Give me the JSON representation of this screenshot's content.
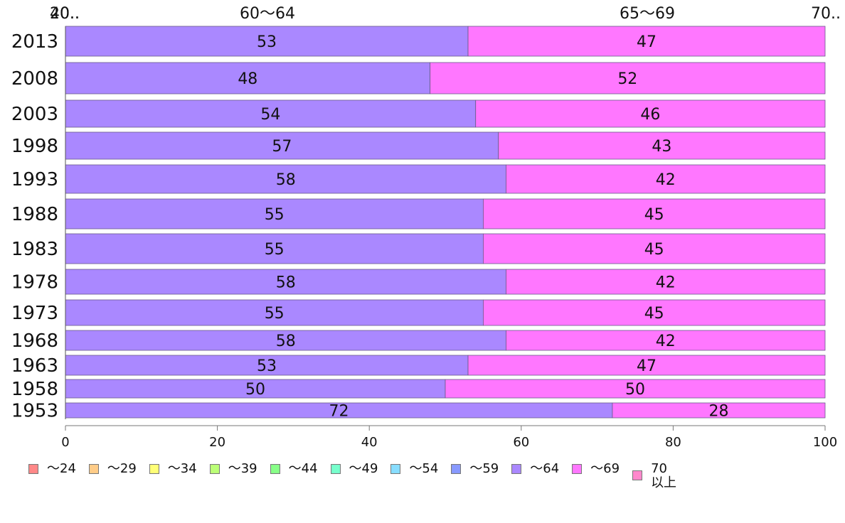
{
  "chart_data": {
    "type": "bar",
    "orientation": "horizontal",
    "stacked": true,
    "categories": [
      "2013",
      "2008",
      "2003",
      "1998",
      "1993",
      "1988",
      "1983",
      "1978",
      "1973",
      "1968",
      "1963",
      "1958",
      "1953"
    ],
    "series": [
      {
        "name": "〜64",
        "color": "#aa88ff",
        "values": [
          53,
          48,
          54,
          57,
          58,
          55,
          55,
          58,
          55,
          58,
          53,
          50,
          72
        ]
      },
      {
        "name": "〜69",
        "color": "#ff77ff",
        "values": [
          47,
          52,
          46,
          43,
          42,
          45,
          45,
          42,
          45,
          42,
          47,
          50,
          28
        ]
      }
    ],
    "top_labels": [
      "20..",
      "40..",
      "60〜64",
      "65〜69",
      "70.."
    ],
    "xlim": [
      0,
      100
    ],
    "xticks": [
      "0",
      "20",
      "40",
      "60",
      "80",
      "100"
    ],
    "legend": {
      "placement": "bottom",
      "items": [
        {
          "label": "〜24",
          "color": "#ff8888"
        },
        {
          "label": "〜29",
          "color": "#ffcc88"
        },
        {
          "label": "〜34",
          "color": "#ffff77"
        },
        {
          "label": "〜39",
          "color": "#bbff77"
        },
        {
          "label": "〜44",
          "color": "#88ff88"
        },
        {
          "label": "〜49",
          "color": "#77ffcc"
        },
        {
          "label": "〜54",
          "color": "#88ddff"
        },
        {
          "label": "〜59",
          "color": "#8899ff"
        },
        {
          "label": "〜64",
          "color": "#aa88ff"
        },
        {
          "label": "〜69",
          "color": "#ff77ff"
        },
        {
          "label": "70\n以上",
          "color": "#ff88cc"
        }
      ]
    }
  }
}
